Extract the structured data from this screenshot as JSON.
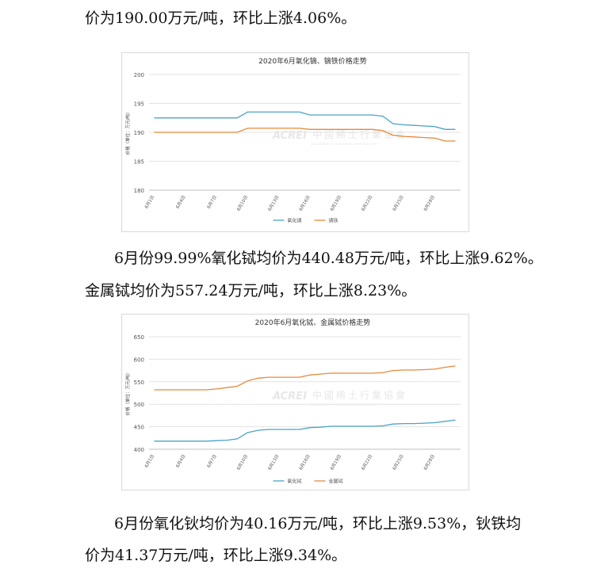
{
  "paragraphs": {
    "p1": "价为190.00万元/吨，环比上涨4.06%。",
    "p2": "6月份99.99%氧化铽均价为440.48万元/吨，环比上涨9.62%。",
    "p3": "金属铽均价为557.24万元/吨，环比上涨8.23%。",
    "p4": "6月份氧化钬均价为40.16万元/吨，环比上涨9.53%，钬铁均",
    "p5": "价为41.37万元/吨，环比上涨9.34%。"
  },
  "watermark": {
    "logo": "ACREI",
    "cn": "中國稀土行業協會",
    "en": "ASSOCIATION OF CHINA RARE EARTH INDUSTRY"
  },
  "chart_data": [
    {
      "type": "line",
      "title": "2020年6月氧化镝、镝铁价格走势",
      "ylabel": "价格（单位：万元/吨）",
      "ylim": [
        180,
        200
      ],
      "yticks": [
        180,
        185,
        190,
        195,
        200
      ],
      "x": [
        "6月1日",
        "6月2日",
        "6月3日",
        "6月4日",
        "6月5日",
        "6月6日",
        "6月7日",
        "6月8日",
        "6月9日",
        "6月10日",
        "6月11日",
        "6月12日",
        "6月13日",
        "6月14日",
        "6月15日",
        "6月16日",
        "6月17日",
        "6月18日",
        "6月19日",
        "6月20日",
        "6月21日",
        "6月22日",
        "6月23日",
        "6月24日",
        "6月25日",
        "6月26日",
        "6月27日",
        "6月28日",
        "6月29日",
        "6月30日"
      ],
      "xtick_labels": [
        "6月1日",
        "6月4日",
        "6月7日",
        "6月10日",
        "6月13日",
        "6月16日",
        "6月19日",
        "6月22日",
        "6月25日",
        "6月28日"
      ],
      "series": [
        {
          "name": "氧化镝",
          "color": "#4ba3c7",
          "values": [
            192.5,
            192.5,
            192.5,
            192.5,
            192.5,
            192.5,
            192.5,
            192.5,
            192.5,
            193.5,
            193.5,
            193.5,
            193.5,
            193.5,
            193.5,
            193,
            193,
            193,
            193,
            193,
            193,
            193,
            192.8,
            191.5,
            191.3,
            191.2,
            191.1,
            191,
            190.5,
            190.5
          ]
        },
        {
          "name": "镝铁",
          "color": "#e8883a",
          "values": [
            190,
            190,
            190,
            190,
            190,
            190,
            190,
            190,
            190,
            190.7,
            190.7,
            190.7,
            190.7,
            190.7,
            190.7,
            190.5,
            190.5,
            190.5,
            190.5,
            190.5,
            190.5,
            190.5,
            190.3,
            189.5,
            189.3,
            189.2,
            189.1,
            189,
            188.5,
            188.5
          ]
        }
      ],
      "legend": "bottom"
    },
    {
      "type": "line",
      "title": "2020年6月氧化铽、金属铽价格走势",
      "ylabel": "价格（单位：万元/吨）",
      "ylim": [
        400,
        650
      ],
      "yticks": [
        400,
        450,
        500,
        550,
        600,
        650
      ],
      "x": [
        "6月1日",
        "6月2日",
        "6月3日",
        "6月4日",
        "6月5日",
        "6月6日",
        "6月7日",
        "6月8日",
        "6月9日",
        "6月10日",
        "6月11日",
        "6月12日",
        "6月13日",
        "6月14日",
        "6月15日",
        "6月16日",
        "6月17日",
        "6月18日",
        "6月19日",
        "6月20日",
        "6月21日",
        "6月22日",
        "6月23日",
        "6月24日",
        "6月25日",
        "6月26日",
        "6月27日",
        "6月28日",
        "6月29日",
        "6月30日"
      ],
      "xtick_labels": [
        "6月1日",
        "6月4日",
        "6月7日",
        "6月10日",
        "6月13日",
        "6月16日",
        "6月19日",
        "6月22日",
        "6月25日",
        "6月28日"
      ],
      "series": [
        {
          "name": "氧化铽",
          "color": "#4ba3c7",
          "values": [
            418,
            418,
            418,
            418,
            418,
            418,
            419,
            420,
            423,
            437,
            442,
            444,
            444,
            444,
            444,
            448,
            449,
            451,
            451,
            451,
            451,
            451,
            452,
            456,
            457,
            457,
            458,
            459,
            462,
            465
          ]
        },
        {
          "name": "金属铽",
          "color": "#e8883a",
          "values": [
            532,
            532,
            532,
            532,
            532,
            532,
            534,
            537,
            540,
            552,
            558,
            560,
            560,
            560,
            560,
            565,
            567,
            569,
            569,
            569,
            569,
            569,
            570,
            575,
            576,
            576,
            577,
            578,
            582,
            585
          ]
        }
      ],
      "legend": "bottom"
    }
  ]
}
